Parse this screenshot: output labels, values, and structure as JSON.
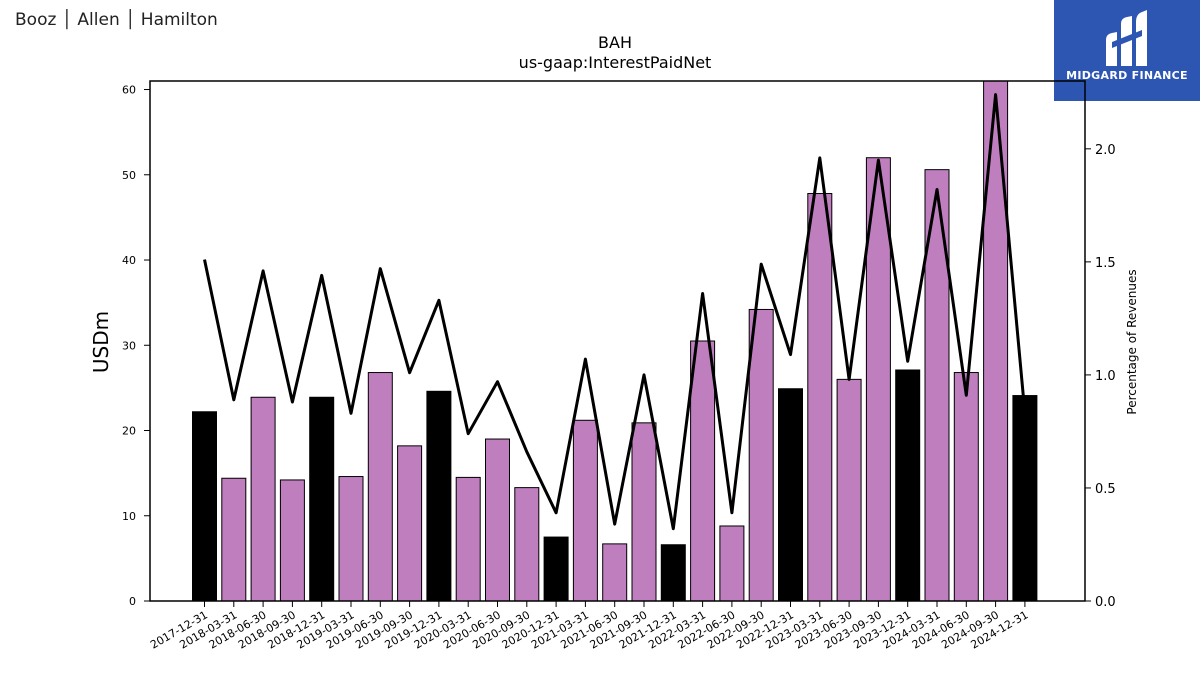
{
  "header": {
    "company": "Booz │ Allen │ Hamilton"
  },
  "logo": {
    "text": "MIDGARD FINANCE"
  },
  "colors": {
    "bar": "#bf7fbf",
    "bar_year_end": "#000000",
    "line": "#000000",
    "brand": "#2d56b3"
  },
  "chart_data": {
    "type": "bar",
    "title": "BAH",
    "subtitle": "us-gaap:InterestPaidNet",
    "ylabel": "USDm",
    "ylabel_right": "Percentage of Revenues",
    "ylim": [
      0,
      61
    ],
    "ylim_right": [
      0,
      2.3
    ],
    "yticks": [
      0,
      10,
      20,
      30,
      40,
      50,
      60
    ],
    "yticks_right": [
      "0.0",
      "0.5",
      "1.0",
      "1.5",
      "2.0"
    ],
    "categories": [
      "2017-12-31",
      "2018-03-31",
      "2018-06-30",
      "2018-09-30",
      "2018-12-31",
      "2019-03-31",
      "2019-06-30",
      "2019-09-30",
      "2019-12-31",
      "2020-03-31",
      "2020-06-30",
      "2020-09-30",
      "2020-12-31",
      "2021-03-31",
      "2021-06-30",
      "2021-09-30",
      "2021-12-31",
      "2022-03-31",
      "2022-06-30",
      "2022-09-30",
      "2022-12-31",
      "2023-03-31",
      "2023-06-30",
      "2023-09-30",
      "2023-12-31",
      "2024-03-31",
      "2024-06-30",
      "2024-09-30",
      "2024-12-31"
    ],
    "series": [
      {
        "type": "bar",
        "values": [
          22.2,
          14.4,
          23.9,
          14.2,
          23.9,
          14.6,
          26.8,
          18.2,
          24.6,
          14.5,
          19.0,
          13.3,
          7.5,
          21.2,
          6.7,
          20.9,
          6.6,
          30.5,
          8.8,
          34.2,
          24.9,
          47.8,
          26.0,
          52.0,
          27.1,
          50.6,
          26.8,
          61.0,
          24.1
        ],
        "year_end": [
          true,
          false,
          false,
          false,
          true,
          false,
          false,
          false,
          true,
          false,
          false,
          false,
          true,
          false,
          false,
          false,
          true,
          false,
          false,
          false,
          true,
          false,
          false,
          false,
          true,
          false,
          false,
          false,
          true
        ]
      },
      {
        "type": "line",
        "axis": "right",
        "values": [
          1.51,
          0.89,
          1.46,
          0.88,
          1.44,
          0.83,
          1.47,
          1.01,
          1.33,
          0.74,
          0.97,
          0.66,
          0.39,
          1.07,
          0.34,
          1.0,
          0.32,
          1.36,
          0.39,
          1.49,
          1.09,
          1.96,
          0.98,
          1.95,
          1.06,
          1.82,
          0.91,
          2.24,
          0.83
        ]
      }
    ]
  }
}
